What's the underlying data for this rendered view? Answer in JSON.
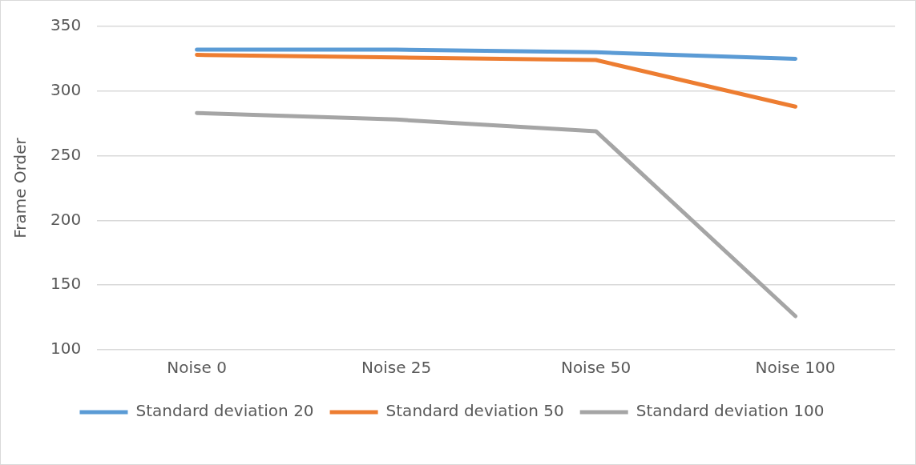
{
  "chart_data": {
    "type": "line",
    "ylabel": "Frame Order",
    "categories": [
      "Noise 0",
      "Noise 25",
      "Noise 50",
      "Noise 100"
    ],
    "series": [
      {
        "name": "Standard deviation 20",
        "color": "#5b9bd5",
        "values": [
          332,
          332,
          330,
          325
        ]
      },
      {
        "name": "Standard deviation 50",
        "color": "#ed7d31",
        "values": [
          328,
          326,
          324,
          288
        ]
      },
      {
        "name": "Standard deviation 100",
        "color": "#a5a5a5",
        "values": [
          283,
          278,
          269,
          126
        ]
      }
    ],
    "ylim": [
      100,
      350
    ],
    "yticks": [
      100,
      150,
      200,
      250,
      300,
      350
    ],
    "grid": "y",
    "legend": "bottom",
    "marker": "none",
    "line_style": "solid"
  }
}
